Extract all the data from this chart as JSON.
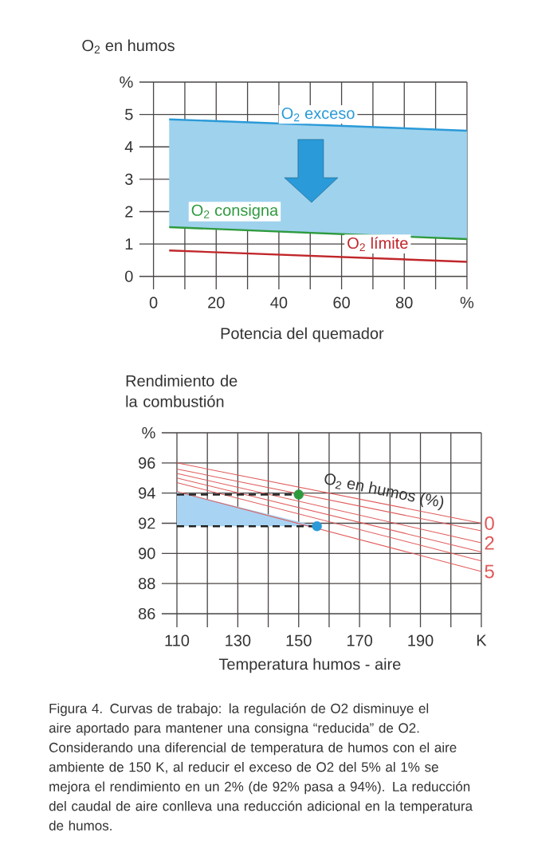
{
  "chart_data": [
    {
      "type": "line",
      "ylabel": "O$_{2}$ en humos",
      "xlabel": "Potencia del quemador",
      "xlim": [
        -4.5,
        100
      ],
      "ylim": [
        -0.4,
        6
      ],
      "xticks": [
        0,
        {
          "value": 10,
          "label": null
        },
        20,
        {
          "value": 30,
          "label": null
        },
        40,
        {
          "value": 50,
          "label": null
        },
        60,
        {
          "value": 70,
          "label": null
        },
        80,
        {
          "value": 90,
          "label": null
        },
        {
          "value": 100,
          "label": "%"
        }
      ],
      "yticks": [
        0,
        1,
        2,
        3,
        4,
        5,
        {
          "value": 6,
          "label": "%"
        }
      ],
      "grid": true,
      "series": [
        {
          "name": "O$_{2}$ exceso",
          "color": "#2a9ad8",
          "x": [
            5,
            100
          ],
          "values": [
            4.85,
            4.5
          ],
          "lower": [
            1.52,
            1.15
          ],
          "upper": [
            4.85,
            4.5
          ]
        },
        {
          "name": "O$_{2}$ consigna",
          "color": "#2e9a3e",
          "x": [
            5,
            100
          ],
          "values": [
            1.52,
            1.15
          ]
        },
        {
          "name": "O$_{2}$ límite",
          "color": "#c0262a",
          "x": [
            5,
            100
          ],
          "values": [
            0.8,
            0.45
          ]
        }
      ]
    },
    {
      "type": "line",
      "ylabel": "Rendimiento de la combustión",
      "xlabel": "Temperatura humos - aire",
      "xlim": [
        105,
        210
      ],
      "ylim": [
        85.1,
        98
      ],
      "xticks": [
        110,
        {
          "value": 120,
          "label": null
        },
        130,
        {
          "value": 140,
          "label": null
        },
        150,
        {
          "value": 160,
          "label": null
        },
        170,
        {
          "value": 180,
          "label": null
        },
        190,
        {
          "value": 200,
          "label": null
        },
        {
          "value": 210,
          "label": "K"
        }
      ],
      "yticks": [
        86,
        88,
        90,
        92,
        94,
        96,
        {
          "value": 98,
          "label": "%"
        }
      ],
      "grid": true,
      "series": [
        {
          "name": "0",
          "color": "#e05a5a",
          "x": [
            110,
            210
          ],
          "values": [
            96.0,
            92.0
          ]
        },
        {
          "color": "#e05a5a",
          "x": [
            110,
            210
          ],
          "values": [
            95.6,
            91.5
          ]
        },
        {
          "name": "2",
          "color": "#e05a5a",
          "x": [
            110,
            210
          ],
          "values": [
            95.3,
            90.7
          ]
        },
        {
          "color": "#e05a5a",
          "x": [
            110,
            210
          ],
          "values": [
            95.0,
            90.1
          ]
        },
        {
          "color": "#e05a5a",
          "x": [
            110,
            210
          ],
          "values": [
            94.7,
            89.5
          ]
        },
        {
          "name": "5",
          "color": "#e05a5a",
          "x": [
            110,
            210
          ],
          "values": [
            94.1,
            88.8
          ]
        },
        {
          "color": "#a8d3f2",
          "x": [
            110,
            156
          ],
          "values": [
            null,
            null
          ],
          "lower": [
            91.8,
            91.8
          ],
          "upper": [
            94.1,
            91.8
          ]
        },
        {
          "color": "#222222",
          "x": [
            110,
            150
          ],
          "values": [
            93.9,
            93.9
          ],
          "line_style": "dashed"
        },
        {
          "color": "#222222",
          "x": [
            110,
            156
          ],
          "values": [
            91.8,
            91.8
          ],
          "line_style": "dashed"
        },
        {
          "type": "scatter",
          "color": "#2e9a3e",
          "x": [
            150
          ],
          "values": [
            93.9
          ],
          "marker": "circle"
        },
        {
          "type": "scatter",
          "color": "#2a9ad8",
          "x": [
            156
          ],
          "values": [
            91.8
          ],
          "marker": "circle"
        }
      ],
      "annotations": [
        "O$_{2}$ en humos (%)",
        "Figura 4. Curvas de trabajo: la regulación de O2 disminuye el aire aportado para mantener una consigna “reducida” de O2. Considerando una diferencial de temperatura de humos con el aire ambiente de 150 K, al reducir el exceso de O2 del 5% al 1% se mejora el rendimiento en un 2% (de 92% pasa a 94%). La reducción del caudal de aire conlleva una reducción adicional en la temperatura de humos."
      ]
    }
  ]
}
